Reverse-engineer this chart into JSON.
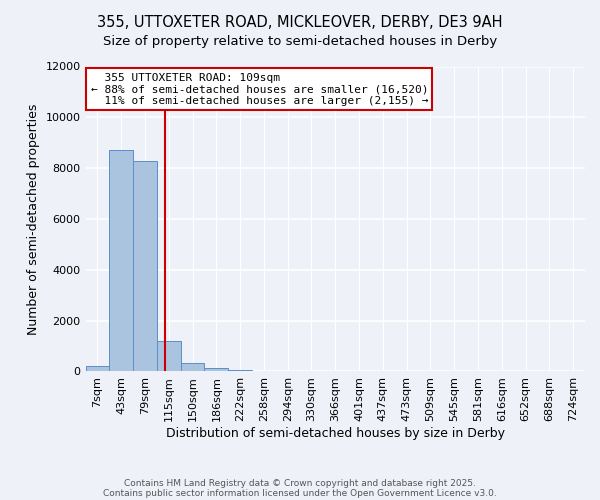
{
  "title_line1": "355, UTTOXETER ROAD, MICKLEOVER, DERBY, DE3 9AH",
  "title_line2": "Size of property relative to semi-detached houses in Derby",
  "xlabel": "Distribution of semi-detached houses by size in Derby",
  "ylabel": "Number of semi-detached properties",
  "categories": [
    "7sqm",
    "43sqm",
    "79sqm",
    "115sqm",
    "150sqm",
    "186sqm",
    "222sqm",
    "258sqm",
    "294sqm",
    "330sqm",
    "366sqm",
    "401sqm",
    "437sqm",
    "473sqm",
    "509sqm",
    "545sqm",
    "581sqm",
    "616sqm",
    "652sqm",
    "688sqm",
    "724sqm"
  ],
  "values": [
    230,
    8700,
    8300,
    1200,
    350,
    120,
    70,
    0,
    0,
    0,
    0,
    0,
    0,
    0,
    0,
    0,
    0,
    0,
    0,
    0,
    0
  ],
  "bar_color": "#aac4e0",
  "bar_edge_color": "#5b8fc9",
  "red_line_x": 2.85,
  "annotation_text": "  355 UTTOXETER ROAD: 109sqm  \n← 88% of semi-detached houses are smaller (16,520)\n  11% of semi-detached houses are larger (2,155) →",
  "annotation_box_color": "#ffffff",
  "annotation_border_color": "#cc0000",
  "ylim": [
    0,
    12000
  ],
  "yticks": [
    0,
    2000,
    4000,
    6000,
    8000,
    10000,
    12000
  ],
  "footnote_line1": "Contains HM Land Registry data © Crown copyright and database right 2025.",
  "footnote_line2": "Contains public sector information licensed under the Open Government Licence v3.0.",
  "background_color": "#eef2f8",
  "grid_color": "#d8dfe8",
  "title_fontsize": 10.5,
  "subtitle_fontsize": 9.5,
  "tick_fontsize": 8,
  "axis_label_fontsize": 9,
  "annotation_fontsize": 8
}
